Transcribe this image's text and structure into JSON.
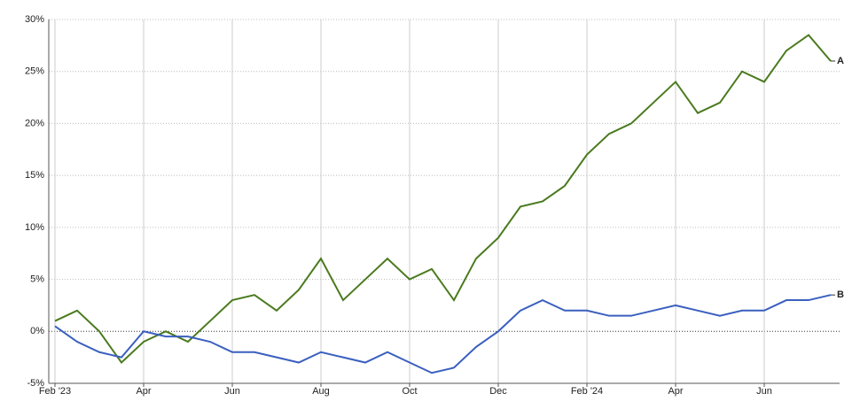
{
  "chart_data": {
    "type": "line",
    "categories": [
      "Feb '23",
      null,
      null,
      null,
      "Apr",
      null,
      null,
      null,
      "Jun",
      null,
      null,
      null,
      "Aug",
      null,
      null,
      null,
      "Oct",
      null,
      null,
      null,
      "Dec",
      null,
      null,
      null,
      "Feb '24",
      null,
      null,
      null,
      "Apr",
      null,
      null,
      null,
      "Jun",
      null,
      null,
      null
    ],
    "series": [
      {
        "name": "A",
        "color": "#4a7a1e",
        "values": [
          1,
          2,
          0,
          -3,
          -1,
          0,
          -1,
          1,
          3,
          3.5,
          2,
          4,
          7,
          3,
          5,
          7,
          5,
          6,
          3,
          7,
          9,
          12,
          12.5,
          14,
          17,
          19,
          20,
          22,
          24,
          21,
          22,
          25,
          24,
          27,
          28.5,
          26
        ]
      },
      {
        "name": "B",
        "color": "#3a5fbf",
        "values": [
          0.5,
          -1,
          -2,
          -2.5,
          0,
          -0.5,
          -0.5,
          -1,
          -2,
          -2,
          -2.5,
          -3,
          -2,
          -2.5,
          -3,
          -2,
          -3,
          -4,
          -3.5,
          -1.5,
          0,
          2,
          3,
          2,
          2,
          1.5,
          1.5,
          2,
          2.5,
          2,
          1.5,
          2,
          2,
          3,
          3,
          3.5
        ]
      }
    ],
    "ylim": [
      -5,
      30
    ],
    "yticks": [
      {
        "value": -5,
        "label": "-5%"
      },
      {
        "value": 0,
        "label": "0%"
      },
      {
        "value": 5,
        "label": "5%"
      },
      {
        "value": 10,
        "label": "10%"
      },
      {
        "value": 15,
        "label": "15%"
      },
      {
        "value": 20,
        "label": "20%"
      },
      {
        "value": 25,
        "label": "25%"
      },
      {
        "value": 30,
        "label": "30%"
      }
    ],
    "grid": true
  }
}
